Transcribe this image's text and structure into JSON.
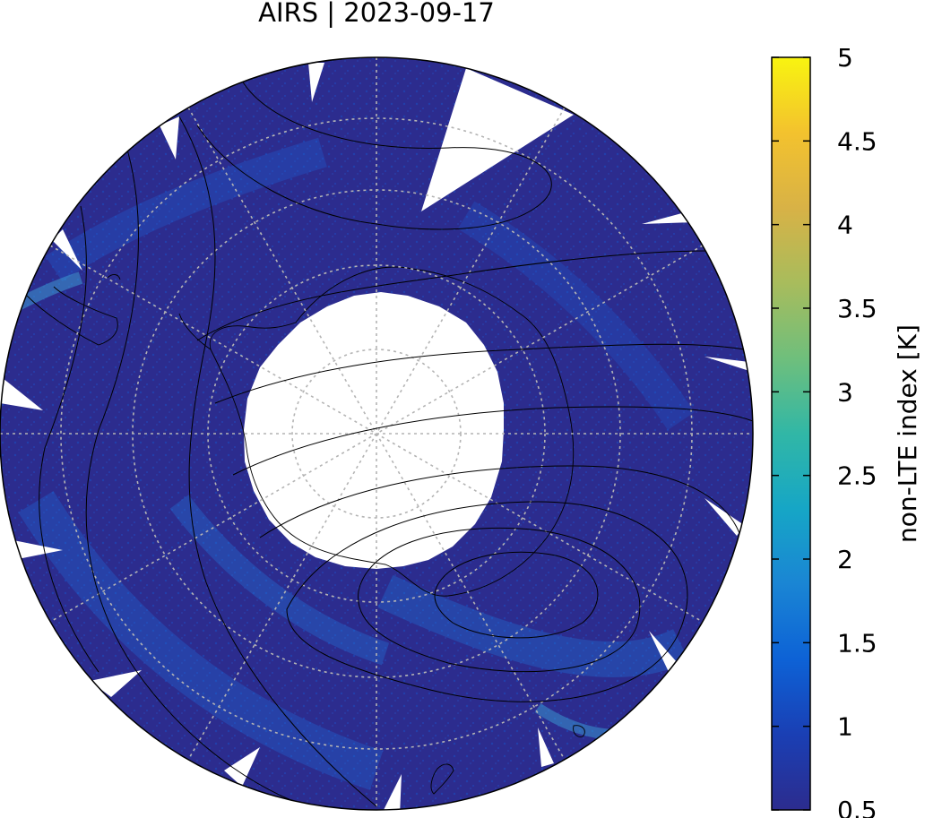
{
  "title": "AIRS | 2023-09-17",
  "colorbar": {
    "label": "non-LTE index [K]",
    "min": 0.5,
    "max": 5,
    "ticks": [
      {
        "value": 0.5,
        "label": "0.5"
      },
      {
        "value": 1,
        "label": "1"
      },
      {
        "value": 1.5,
        "label": "1.5"
      },
      {
        "value": 2,
        "label": "2"
      },
      {
        "value": 2.5,
        "label": "2.5"
      },
      {
        "value": 3,
        "label": "3"
      },
      {
        "value": 3.5,
        "label": "3.5"
      },
      {
        "value": 4,
        "label": "4"
      },
      {
        "value": 4.5,
        "label": "4.5"
      },
      {
        "value": 5,
        "label": "5"
      }
    ],
    "colormap": [
      "#2c2c8e",
      "#1a3fb4",
      "#0d62d6",
      "#1a85d4",
      "#16a6c6",
      "#31b7a6",
      "#6fbf7c",
      "#a8bc5c",
      "#d8b246",
      "#f3c22e",
      "#f8f410"
    ]
  },
  "map": {
    "projection": "south-polar",
    "background_color": "#2c2c8e",
    "data_gap_color": "#ffffff",
    "graticule_color": "#b4b4b4",
    "contour_color": "#000000",
    "coastline_color": "#000000"
  }
}
